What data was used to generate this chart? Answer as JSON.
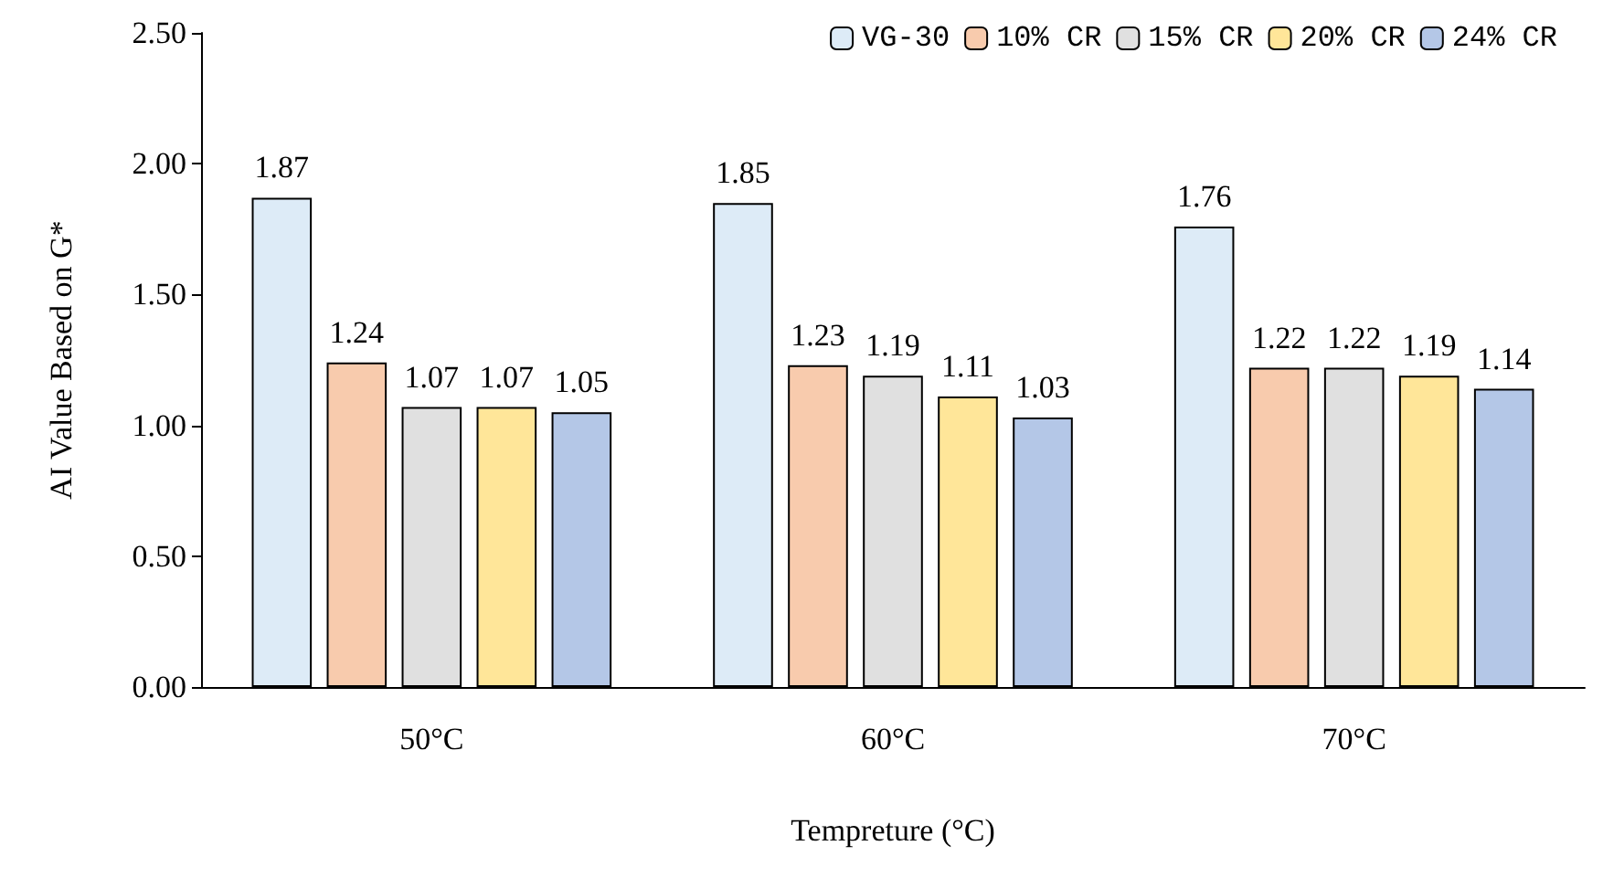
{
  "chart_data": {
    "type": "bar",
    "xlabel": "Tempreture (°C)",
    "ylabel": "AI Value Based on G*",
    "categories": [
      "50°C",
      "60°C",
      "70°C"
    ],
    "series": [
      {
        "name": "VG-30",
        "color": "#ddebf7",
        "values": [
          1.87,
          1.85,
          1.76
        ]
      },
      {
        "name": "10% CR",
        "color": "#f8cbad",
        "values": [
          1.24,
          1.23,
          1.22
        ]
      },
      {
        "name": "15% CR",
        "color": "#e0e0e0",
        "values": [
          1.07,
          1.19,
          1.22
        ]
      },
      {
        "name": "20% CR",
        "color": "#ffe699",
        "values": [
          1.07,
          1.11,
          1.19
        ]
      },
      {
        "name": "24% CR",
        "color": "#b4c7e7",
        "values": [
          1.05,
          1.03,
          1.14
        ]
      }
    ],
    "ylim": [
      0,
      2.5
    ],
    "yticks": [
      {
        "value": 0,
        "label": "0.00"
      },
      {
        "value": 0.5,
        "label": "0.50"
      },
      {
        "value": 1,
        "label": "1.00"
      },
      {
        "value": 1.5,
        "label": "1.50"
      },
      {
        "value": 2,
        "label": "2.00"
      },
      {
        "value": 2.5,
        "label": "2.50"
      }
    ],
    "grid": false,
    "legend": "top right",
    "data_labels": true
  }
}
